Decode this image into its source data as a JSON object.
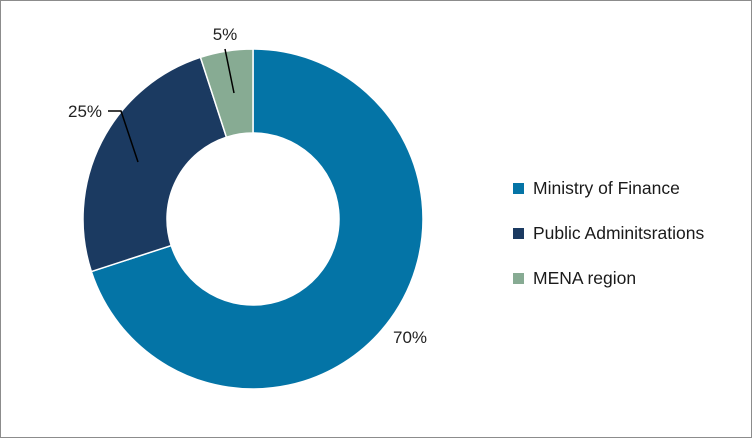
{
  "chart_data": {
    "type": "pie",
    "variant": "donut",
    "categories": [
      "Ministry of Finance",
      "Public Adminitsrations",
      "MENA region"
    ],
    "values": [
      70,
      25,
      5
    ],
    "labels": [
      "70%",
      "25%",
      "5%"
    ],
    "colors": [
      "#0474a6",
      "#1b3a61",
      "#87ab93"
    ],
    "legend_position": "right",
    "title": ""
  }
}
